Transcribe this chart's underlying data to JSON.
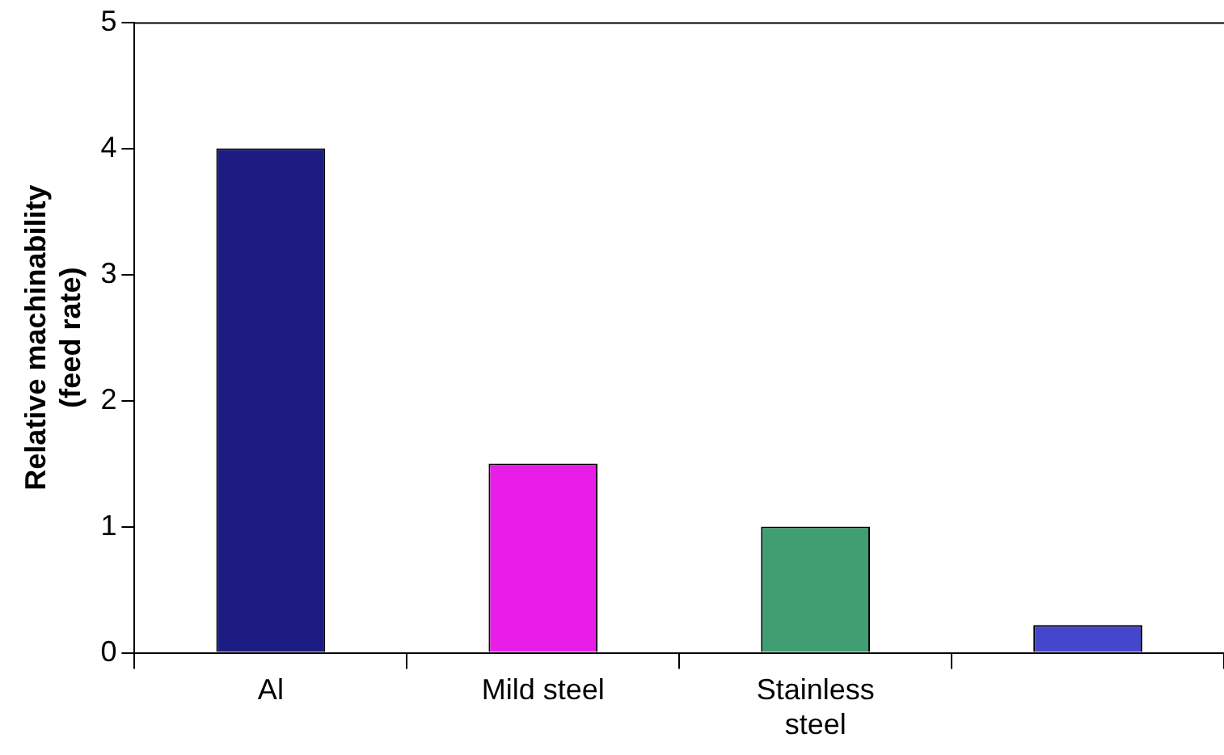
{
  "chart_data": {
    "type": "bar",
    "ylabel": "Relative machinability\n(feed rate)",
    "categories": [
      "Al",
      "Mild steel",
      "Stainless steel",
      null
    ],
    "values": [
      4,
      1.5,
      1,
      0.22
    ],
    "colors": [
      "#1c1c82",
      "#e81ee8",
      "#3f9e72",
      "#4646cc"
    ],
    "ylim": [
      0,
      5
    ],
    "yticks": [
      0,
      1,
      2,
      3,
      4,
      5
    ],
    "grid": false,
    "legend": false
  }
}
